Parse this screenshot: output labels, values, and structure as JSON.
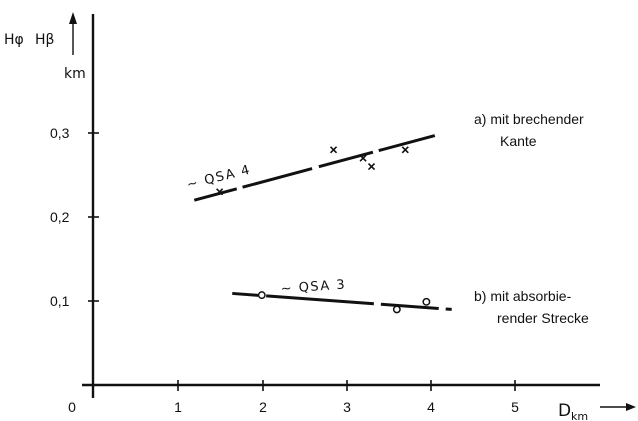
{
  "chart_data": {
    "type": "scatter",
    "y_axis_label_left": "Hφ",
    "y_axis_label_right": "Hβ",
    "y_unit": "km",
    "x_axis_label": "D",
    "x_unit": "km",
    "x_ticks": [
      "0",
      "1",
      "2",
      "3",
      "4",
      "5"
    ],
    "y_ticks": [
      "0,1",
      "0,2",
      "0,3"
    ],
    "xlim": [
      0,
      5.5
    ],
    "ylim": [
      0,
      0.35
    ],
    "grid": false,
    "series": [
      {
        "name": "~ QSA 4",
        "marker": "x",
        "points": [
          {
            "x": 1.5,
            "y": 0.23
          },
          {
            "x": 2.85,
            "y": 0.28
          },
          {
            "x": 3.2,
            "y": 0.27
          },
          {
            "x": 3.3,
            "y": 0.26
          },
          {
            "x": 3.7,
            "y": 0.28
          }
        ],
        "trend": {
          "x": [
            1.2,
            4.05
          ],
          "y": [
            0.22,
            0.297
          ]
        }
      },
      {
        "name": "~ QSA 3",
        "marker": "o",
        "points": [
          {
            "x": 2.0,
            "y": 0.107
          },
          {
            "x": 3.6,
            "y": 0.09
          },
          {
            "x": 3.95,
            "y": 0.099
          }
        ],
        "trend": {
          "x": [
            1.65,
            4.25
          ],
          "y": [
            0.109,
            0.09
          ]
        }
      }
    ],
    "annotations": [
      {
        "lines": [
          "a)  mit brechender",
          "Kante"
        ]
      },
      {
        "lines": [
          "b)  mit absorbie-",
          "render Strecke"
        ]
      }
    ]
  }
}
